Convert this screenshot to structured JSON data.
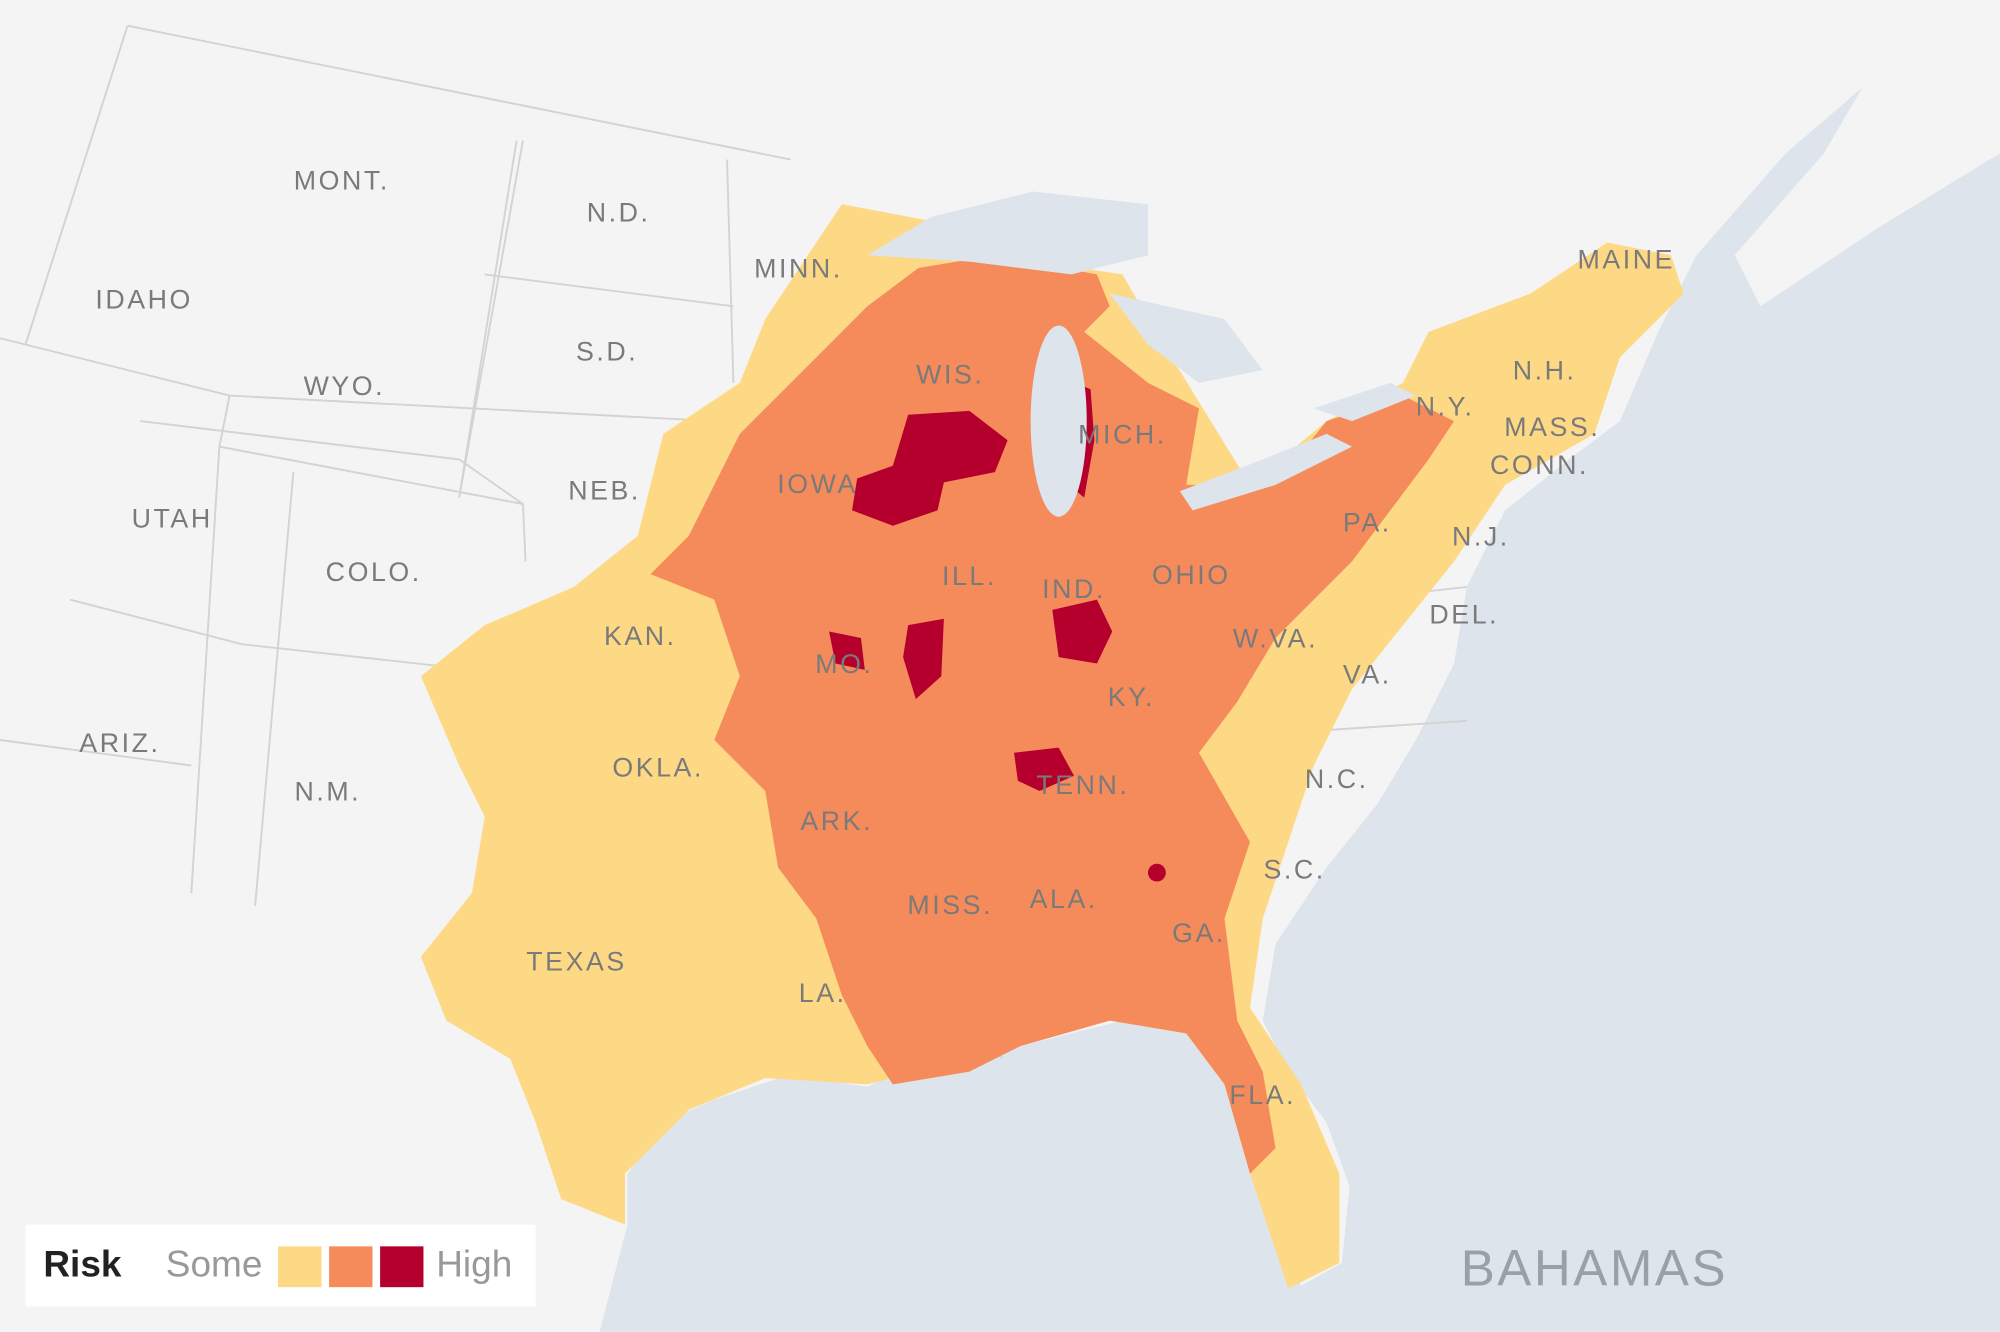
{
  "map": {
    "labels": [
      "MONT.",
      "N.D.",
      "MINN.",
      "IDAHO",
      "S.D.",
      "WYO.",
      "WIS.",
      "MICH.",
      "NEB.",
      "IOWA",
      "UTAH",
      "COLO.",
      "ILL.",
      "IND.",
      "OHIO",
      "KAN.",
      "MO.",
      "W.VA.",
      "KY.",
      "VA.",
      "DEL.",
      "ARIZ.",
      "OKLA.",
      "TENN.",
      "N.C.",
      "N.M.",
      "ARK.",
      "S.C.",
      "MISS.",
      "ALA.",
      "GA.",
      "TEXAS",
      "LA.",
      "FLA.",
      "MAINE",
      "N.H.",
      "N.Y.",
      "MASS.",
      "CONN.",
      "PA.",
      "N.J."
    ],
    "country_label": "BAHAMAS"
  },
  "legend": {
    "title": "Risk",
    "low": "Some",
    "high": "High",
    "colors": [
      "#fdd985",
      "#f58b5b",
      "#b5002e"
    ]
  }
}
